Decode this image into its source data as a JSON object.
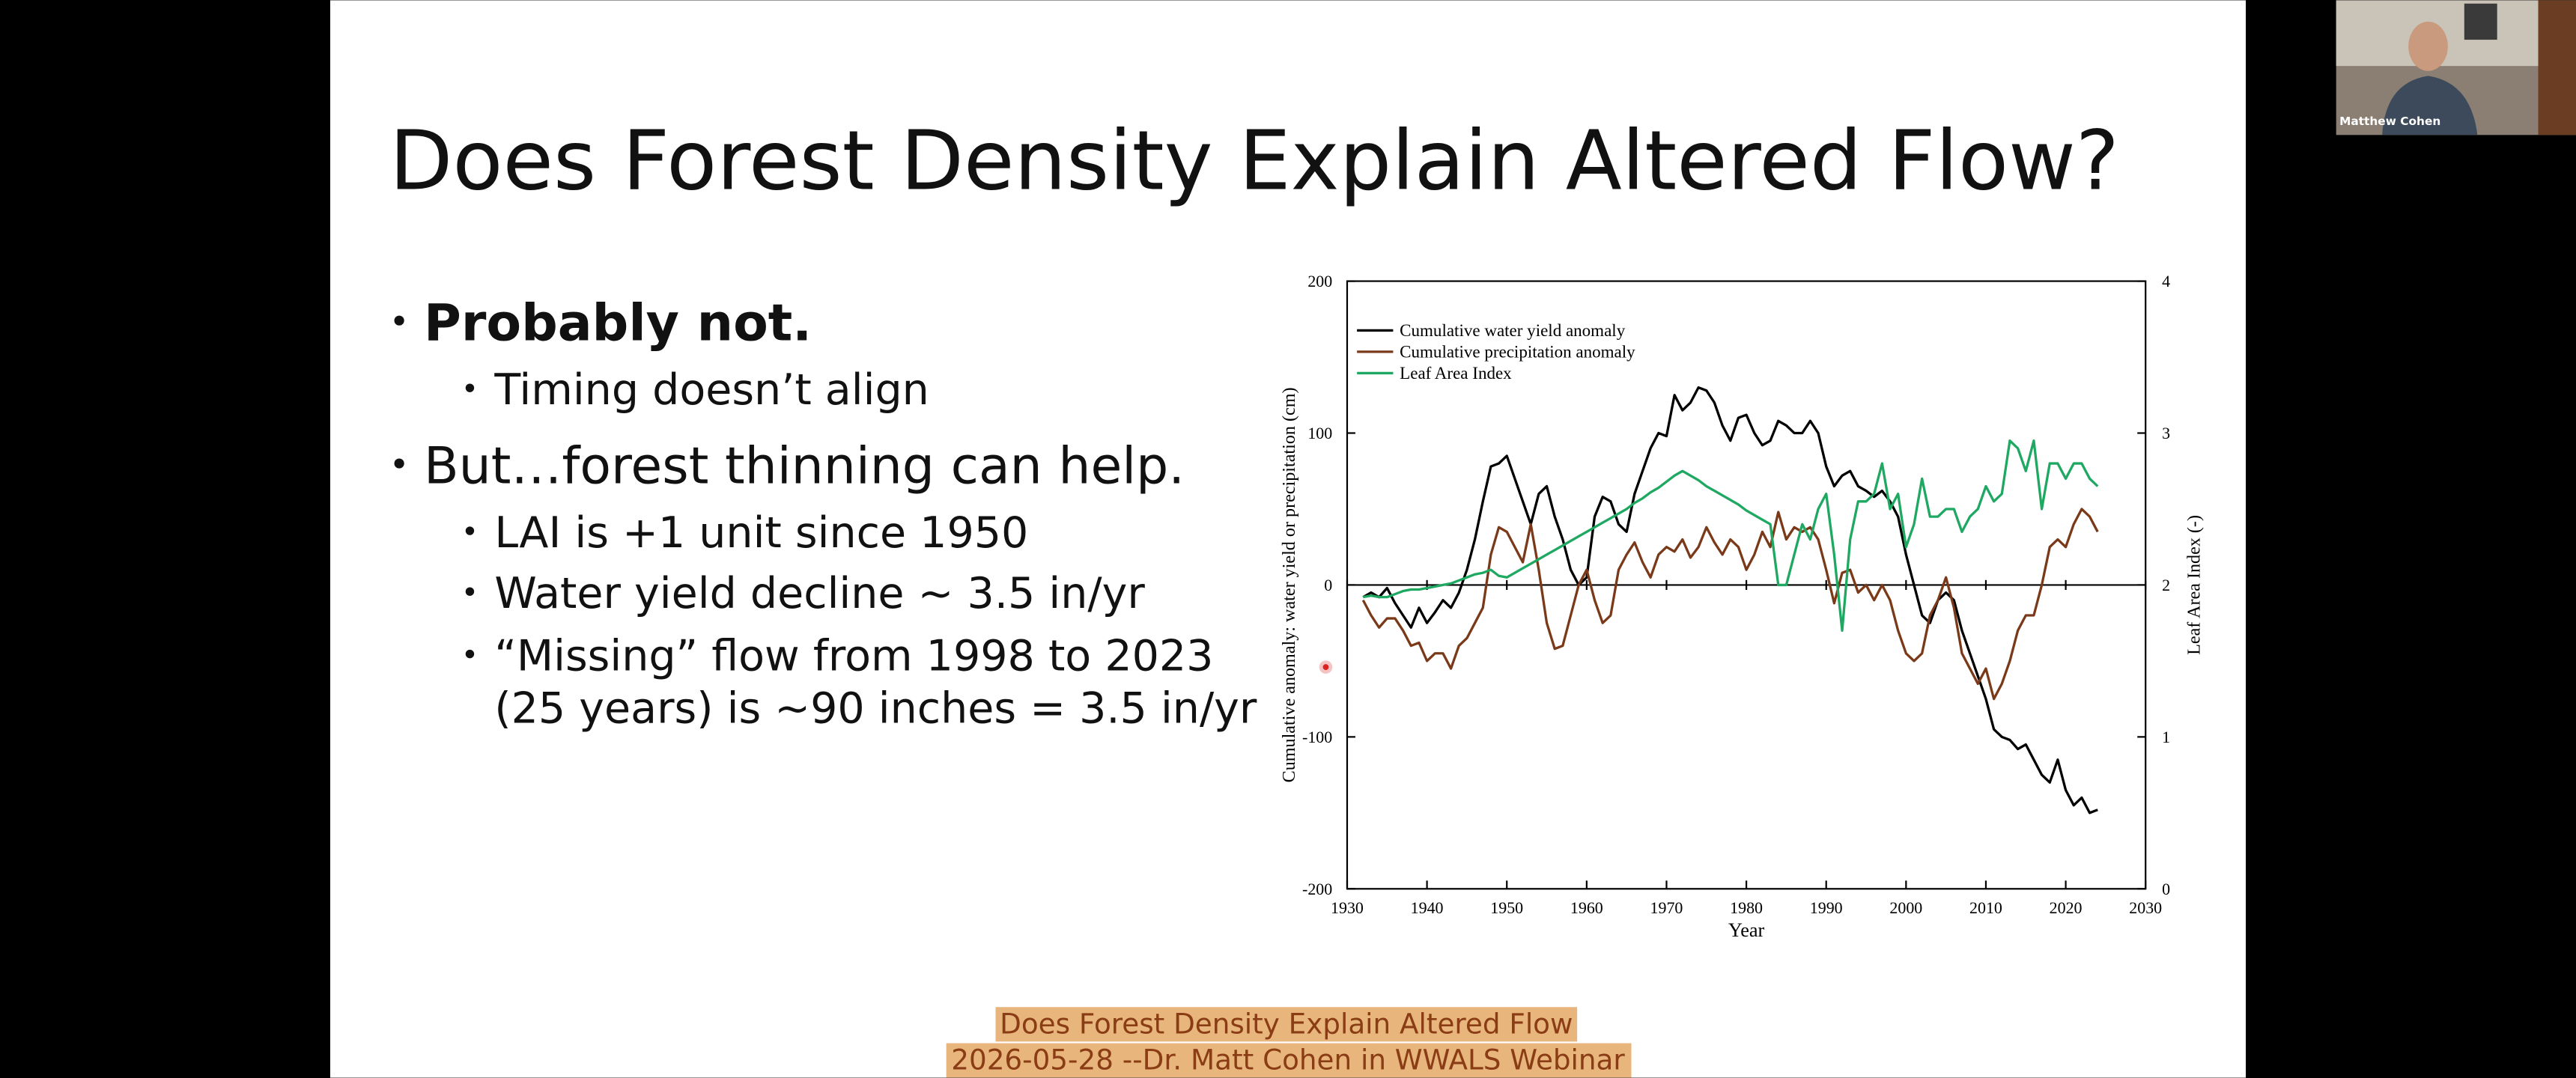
{
  "slide": {
    "title": "Does Forest Density Explain Altered Flow?",
    "bullets": [
      {
        "text": "Probably not.",
        "items": [
          "Timing doesn’t align"
        ]
      },
      {
        "text": "But…forest thinning can help.",
        "items": [
          "LAI is +1 unit since 1950",
          "Water yield decline ~ 3.5 in/yr",
          "“Missing” flow from 1998 to 2023",
          "(25 years) is ~90 inches = 3.5 in/yr"
        ]
      }
    ]
  },
  "caption": [
    "Does Forest Density Explain Altered Flow",
    "2026-05-28 --Dr. Matt Cohen in WWALS Webinar"
  ],
  "participant": {
    "name": "Matthew Cohen"
  },
  "chart_data": {
    "type": "line",
    "xlabel": "Year",
    "ylabel": "Cumulative anomaly: water yield or precipitation (cm)",
    "y2label": "Leaf Area Index (-)",
    "xlim": [
      1930,
      2030
    ],
    "xticks": [
      1930,
      1940,
      1950,
      1960,
      1970,
      1980,
      1990,
      2000,
      2010,
      2020,
      2030
    ],
    "ylim": [
      -200,
      200
    ],
    "yticks": [
      -200,
      -100,
      0,
      100,
      200
    ],
    "y2lim": [
      0,
      4
    ],
    "y2ticks": [
      0,
      1,
      2,
      3,
      4
    ],
    "legend": "upper left",
    "x": [
      1932,
      1933,
      1934,
      1935,
      1936,
      1937,
      1938,
      1939,
      1940,
      1941,
      1942,
      1943,
      1944,
      1945,
      1946,
      1947,
      1948,
      1949,
      1950,
      1951,
      1952,
      1953,
      1954,
      1955,
      1956,
      1957,
      1958,
      1959,
      1960,
      1961,
      1962,
      1963,
      1964,
      1965,
      1966,
      1967,
      1968,
      1969,
      1970,
      1971,
      1972,
      1973,
      1974,
      1975,
      1976,
      1977,
      1978,
      1979,
      1980,
      1981,
      1982,
      1983,
      1984,
      1985,
      1986,
      1987,
      1988,
      1989,
      1990,
      1991,
      1992,
      1993,
      1994,
      1995,
      1996,
      1997,
      1998,
      1999,
      2000,
      2001,
      2002,
      2003,
      2004,
      2005,
      2006,
      2007,
      2008,
      2009,
      2010,
      2011,
      2012,
      2013,
      2014,
      2015,
      2016,
      2017,
      2018,
      2019,
      2020,
      2021,
      2022,
      2023,
      2024
    ],
    "series": [
      {
        "name": "Cumulative water yield anomaly",
        "color": "#000000",
        "values": [
          -8,
          -5,
          -8,
          -2,
          -12,
          -20,
          -28,
          -15,
          -25,
          -18,
          -10,
          -15,
          -5,
          10,
          30,
          55,
          78,
          80,
          85,
          70,
          55,
          40,
          60,
          65,
          45,
          30,
          10,
          0,
          5,
          45,
          58,
          55,
          40,
          35,
          60,
          75,
          90,
          100,
          98,
          125,
          115,
          120,
          130,
          128,
          120,
          105,
          95,
          110,
          112,
          100,
          92,
          95,
          108,
          105,
          100,
          100,
          108,
          100,
          78,
          65,
          72,
          75,
          65,
          62,
          58,
          62,
          55,
          45,
          20,
          0,
          -20,
          -25,
          -10,
          -5,
          -10,
          -30,
          -45,
          -60,
          -75,
          -95,
          -100,
          -102,
          -108,
          -105,
          -115,
          -125,
          -130,
          -115,
          -135,
          -145,
          -140,
          -150,
          -148
        ]
      },
      {
        "name": "Cumulative precipitation anomaly",
        "color": "#7a3a1a",
        "values": [
          -10,
          -20,
          -28,
          -22,
          -22,
          -30,
          -40,
          -38,
          -50,
          -45,
          -45,
          -55,
          -40,
          -35,
          -25,
          -15,
          20,
          38,
          35,
          25,
          15,
          40,
          10,
          -25,
          -42,
          -40,
          -20,
          0,
          10,
          -10,
          -25,
          -20,
          10,
          20,
          28,
          15,
          5,
          20,
          25,
          22,
          30,
          18,
          25,
          38,
          28,
          20,
          30,
          25,
          10,
          20,
          35,
          25,
          48,
          30,
          38,
          35,
          38,
          30,
          10,
          -12,
          8,
          10,
          -5,
          0,
          -10,
          0,
          -10,
          -30,
          -45,
          -50,
          -45,
          -20,
          -10,
          5,
          -15,
          -45,
          -55,
          -65,
          -55,
          -75,
          -65,
          -50,
          -30,
          -20,
          -20,
          0,
          25,
          30,
          25,
          40,
          50,
          45,
          35
        ]
      },
      {
        "name": "Leaf Area Index",
        "color": "#1fa862",
        "axis": "y2",
        "values": [
          1.92,
          1.93,
          1.92,
          1.92,
          1.94,
          1.96,
          1.97,
          1.97,
          1.98,
          1.99,
          2.0,
          2.01,
          2.03,
          2.05,
          2.07,
          2.08,
          2.1,
          2.06,
          2.05,
          2.08,
          2.11,
          2.14,
          2.17,
          2.2,
          2.23,
          2.26,
          2.29,
          2.32,
          2.35,
          2.38,
          2.41,
          2.44,
          2.47,
          2.5,
          2.54,
          2.57,
          2.61,
          2.64,
          2.68,
          2.72,
          2.75,
          2.72,
          2.69,
          2.65,
          2.62,
          2.59,
          2.56,
          2.53,
          2.49,
          2.46,
          2.43,
          2.4,
          2.0,
          2.0,
          2.2,
          2.4,
          2.3,
          2.5,
          2.6,
          2.2,
          1.7,
          2.3,
          2.55,
          2.55,
          2.6,
          2.8,
          2.5,
          2.6,
          2.25,
          2.4,
          2.7,
          2.45,
          2.45,
          2.5,
          2.5,
          2.35,
          2.45,
          2.5,
          2.65,
          2.55,
          2.6,
          2.95,
          2.9,
          2.75,
          2.95,
          2.5,
          2.8,
          2.8,
          2.7,
          2.8,
          2.8,
          2.7,
          2.65
        ]
      }
    ]
  }
}
